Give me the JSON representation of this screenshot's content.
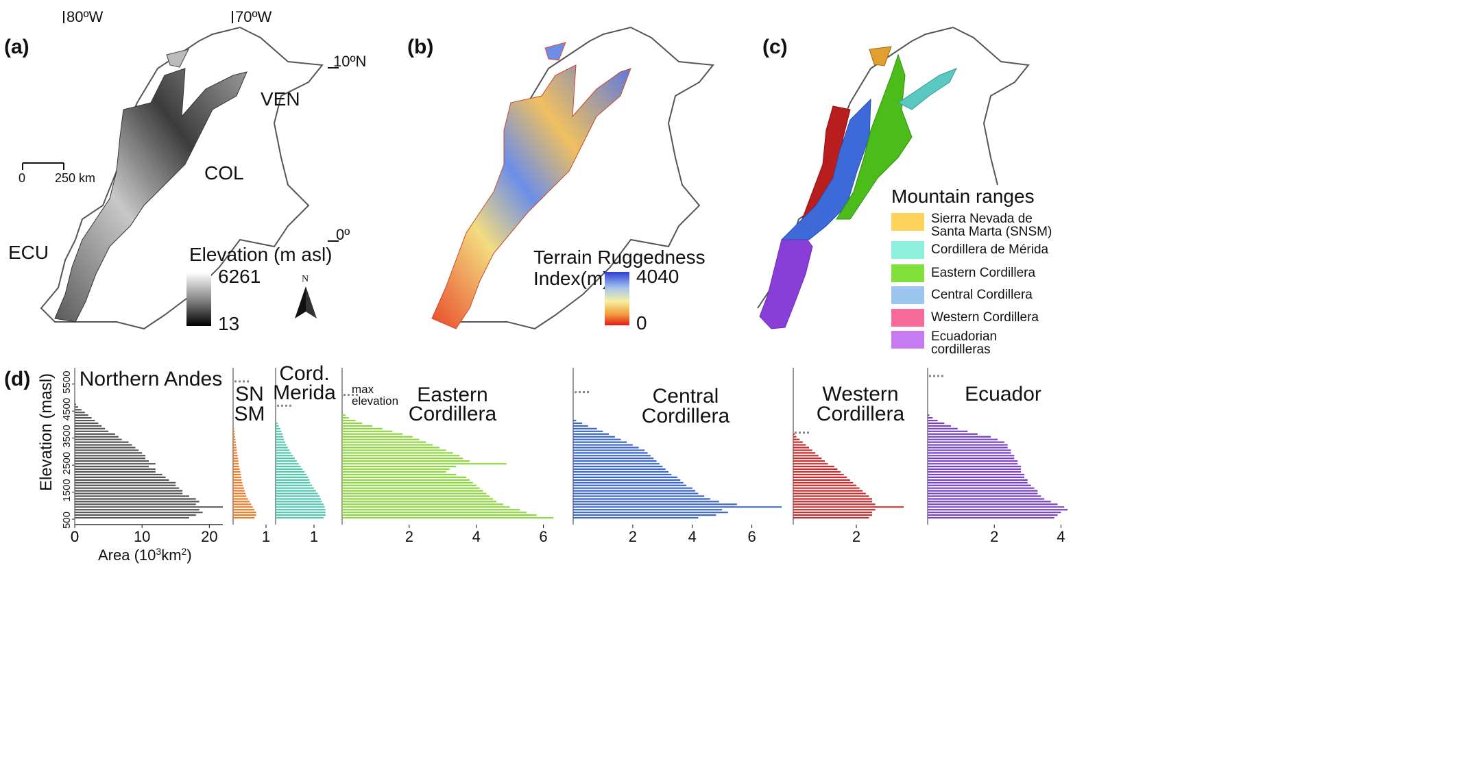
{
  "panels": {
    "a": {
      "label": "(a)",
      "lon_labels": [
        "80ºW",
        "70ºW"
      ],
      "lat_labels": [
        "10ºN",
        "0º"
      ],
      "countries": [
        "VEN",
        "COL",
        "ECU"
      ],
      "scale": {
        "zero": "0",
        "end": "250 km"
      },
      "colorbar": {
        "title": "Elevation (m asl)",
        "max": "6261",
        "min": "13"
      },
      "north": "N"
    },
    "b": {
      "label": "(b)",
      "colorbar": {
        "title_line1": "Terrain Ruggedness",
        "title_line2": "Index(m)",
        "max": "4040",
        "min": "0"
      }
    },
    "c": {
      "label": "(c)",
      "legend_title": "Mountain ranges",
      "legend": [
        {
          "lines": [
            "Sierra Nevada de",
            "Santa Marta (SNSM)"
          ],
          "color": "#ffd45a"
        },
        {
          "lines": [
            "Cordillera de Mérida"
          ],
          "color": "#8ef0dc"
        },
        {
          "lines": [
            "Eastern Cordillera"
          ],
          "color": "#82e03a"
        },
        {
          "lines": [
            "Central Cordillera"
          ],
          "color": "#9cc6f0"
        },
        {
          "lines": [
            "Western Cordillera"
          ],
          "color": "#f86a9a"
        },
        {
          "lines": [
            "Ecuadorian",
            "cordilleras"
          ],
          "color": "#c47cf0"
        }
      ]
    },
    "d": {
      "label": "(d)",
      "y_axis_label": "Elevation  (masl)",
      "x_axis_label": "Area (10³km²)",
      "max_elev_note": [
        "max",
        "elevation"
      ]
    }
  },
  "chart_data": {
    "type": "bar",
    "orientation": "horizontal",
    "y_ticks": [
      "500",
      "1500",
      "2500",
      "3500",
      "4500",
      "5500"
    ],
    "elevation_bins": [
      500,
      600,
      700,
      800,
      900,
      1000,
      1100,
      1200,
      1300,
      1400,
      1500,
      1600,
      1700,
      1800,
      1900,
      2000,
      2100,
      2200,
      2300,
      2400,
      2500,
      2600,
      2700,
      2800,
      2900,
      3000,
      3100,
      3200,
      3300,
      3400,
      3500,
      3600,
      3700,
      3800,
      3900,
      4000,
      4100,
      4200,
      4300,
      4400,
      4500,
      4600,
      4700
    ],
    "series": [
      {
        "title": "Northern Andes",
        "color": "#555555",
        "xmax": 22,
        "xticks": [
          "0",
          "10",
          "20"
        ],
        "xtick_values": [
          0,
          10,
          20
        ],
        "max_elevation": null,
        "values": [
          17,
          18,
          19,
          18.5,
          22,
          18,
          18.5,
          18,
          17,
          16,
          16,
          15.5,
          15,
          15,
          14,
          13.5,
          13,
          12,
          12,
          11,
          12,
          11,
          10.5,
          10.5,
          10,
          9.5,
          9,
          8.5,
          8,
          7,
          6.5,
          6,
          5,
          4.5,
          4,
          3.5,
          3,
          2.5,
          2,
          1.5,
          1,
          0.5,
          0.2
        ]
      },
      {
        "title": "SN\nSM",
        "color": "#f07a22",
        "xmax": 1.0,
        "xticks": [
          "1"
        ],
        "xtick_values": [
          1
        ],
        "max_elevation": 5600,
        "values": [
          0.65,
          0.7,
          0.7,
          0.65,
          0.6,
          0.55,
          0.5,
          0.45,
          0.4,
          0.38,
          0.35,
          0.33,
          0.3,
          0.28,
          0.26,
          0.25,
          0.24,
          0.22,
          0.2,
          0.18,
          0.17,
          0.16,
          0.15,
          0.14,
          0.12,
          0.11,
          0.1,
          0.09,
          0.08,
          0.07,
          0.06,
          0.05,
          0.04,
          0.03,
          0.02,
          0,
          0,
          0,
          0,
          0,
          0,
          0,
          0
        ]
      },
      {
        "title": "Cord.\nMerida",
        "color": "#4fc8b0",
        "xmax": 1.5,
        "xticks": [
          "1"
        ],
        "xtick_values": [
          1
        ],
        "max_elevation": 4700,
        "values": [
          1.25,
          1.3,
          1.3,
          1.3,
          1.28,
          1.25,
          1.2,
          1.18,
          1.15,
          1.1,
          1.05,
          1.0,
          0.95,
          0.9,
          0.88,
          0.85,
          0.8,
          0.75,
          0.7,
          0.65,
          0.6,
          0.55,
          0.5,
          0.45,
          0.4,
          0.36,
          0.32,
          0.28,
          0.25,
          0.22,
          0.2,
          0.18,
          0.15,
          0.12,
          0.08,
          0.05,
          0,
          0,
          0,
          0,
          0,
          0,
          0
        ]
      },
      {
        "title": "Eastern\nCordillera",
        "color": "#8cd83c",
        "xmax": 6.5,
        "xticks": [
          "2",
          "4",
          "6"
        ],
        "xtick_values": [
          2,
          4,
          6
        ],
        "max_elevation": 5100,
        "values": [
          6.3,
          5.8,
          5.5,
          5.3,
          5.0,
          4.8,
          4.6,
          4.5,
          4.4,
          4.3,
          4.2,
          4.1,
          4.0,
          3.9,
          3.8,
          3.7,
          3.4,
          3.1,
          3.2,
          3.4,
          4.9,
          3.8,
          3.6,
          3.5,
          3.3,
          3.1,
          2.9,
          2.7,
          2.5,
          2.3,
          2.1,
          1.8,
          1.5,
          1.2,
          0.9,
          0.6,
          0.4,
          0.2,
          0.1,
          0,
          0,
          0,
          0
        ]
      },
      {
        "title": "Central\nCordillera",
        "color": "#3a66cc",
        "xmax": 7.0,
        "xticks": [
          "2",
          "4",
          "6"
        ],
        "xtick_values": [
          2,
          4,
          6
        ],
        "max_elevation": 5200,
        "values": [
          4.2,
          4.8,
          5.2,
          5.0,
          7.0,
          5.5,
          4.9,
          4.6,
          4.4,
          4.2,
          4.1,
          4.0,
          3.8,
          3.7,
          3.6,
          3.5,
          3.3,
          3.2,
          3.1,
          3.0,
          2.9,
          2.8,
          2.7,
          2.6,
          2.5,
          2.4,
          2.2,
          2.0,
          1.8,
          1.6,
          1.4,
          1.2,
          1.0,
          0.8,
          0.5,
          0.3,
          0.1,
          0,
          0,
          0,
          0,
          0,
          0
        ]
      },
      {
        "title": "Western\nCordillera",
        "color": "#cc2a2a",
        "xmax": 3.5,
        "xticks": [
          "2"
        ],
        "xtick_values": [
          2
        ],
        "max_elevation": 3700,
        "values": [
          2.4,
          2.5,
          2.5,
          2.6,
          3.5,
          2.6,
          2.5,
          2.5,
          2.4,
          2.3,
          2.2,
          2.1,
          2.0,
          1.9,
          1.8,
          1.7,
          1.6,
          1.5,
          1.4,
          1.3,
          1.1,
          1.0,
          0.9,
          0.8,
          0.7,
          0.6,
          0.5,
          0.4,
          0.3,
          0.2,
          0.1,
          0.05,
          0,
          0,
          0,
          0,
          0,
          0,
          0,
          0,
          0,
          0,
          0
        ]
      },
      {
        "title": "Ecuador",
        "color": "#7a40c8",
        "xmax": 4.3,
        "xticks": [
          "2",
          "4"
        ],
        "xtick_values": [
          2,
          4
        ],
        "max_elevation": 5800,
        "values": [
          3.8,
          3.9,
          4.0,
          4.2,
          4.1,
          3.9,
          3.7,
          3.5,
          3.4,
          3.3,
          3.3,
          3.2,
          3.1,
          3.0,
          3.0,
          2.9,
          2.9,
          2.8,
          2.8,
          2.8,
          2.7,
          2.7,
          2.6,
          2.6,
          2.5,
          2.5,
          2.4,
          2.4,
          2.3,
          2.1,
          1.9,
          1.5,
          1.2,
          0.9,
          0.7,
          0.5,
          0.3,
          0.15,
          0.05,
          0,
          0,
          0,
          0
        ]
      }
    ]
  }
}
